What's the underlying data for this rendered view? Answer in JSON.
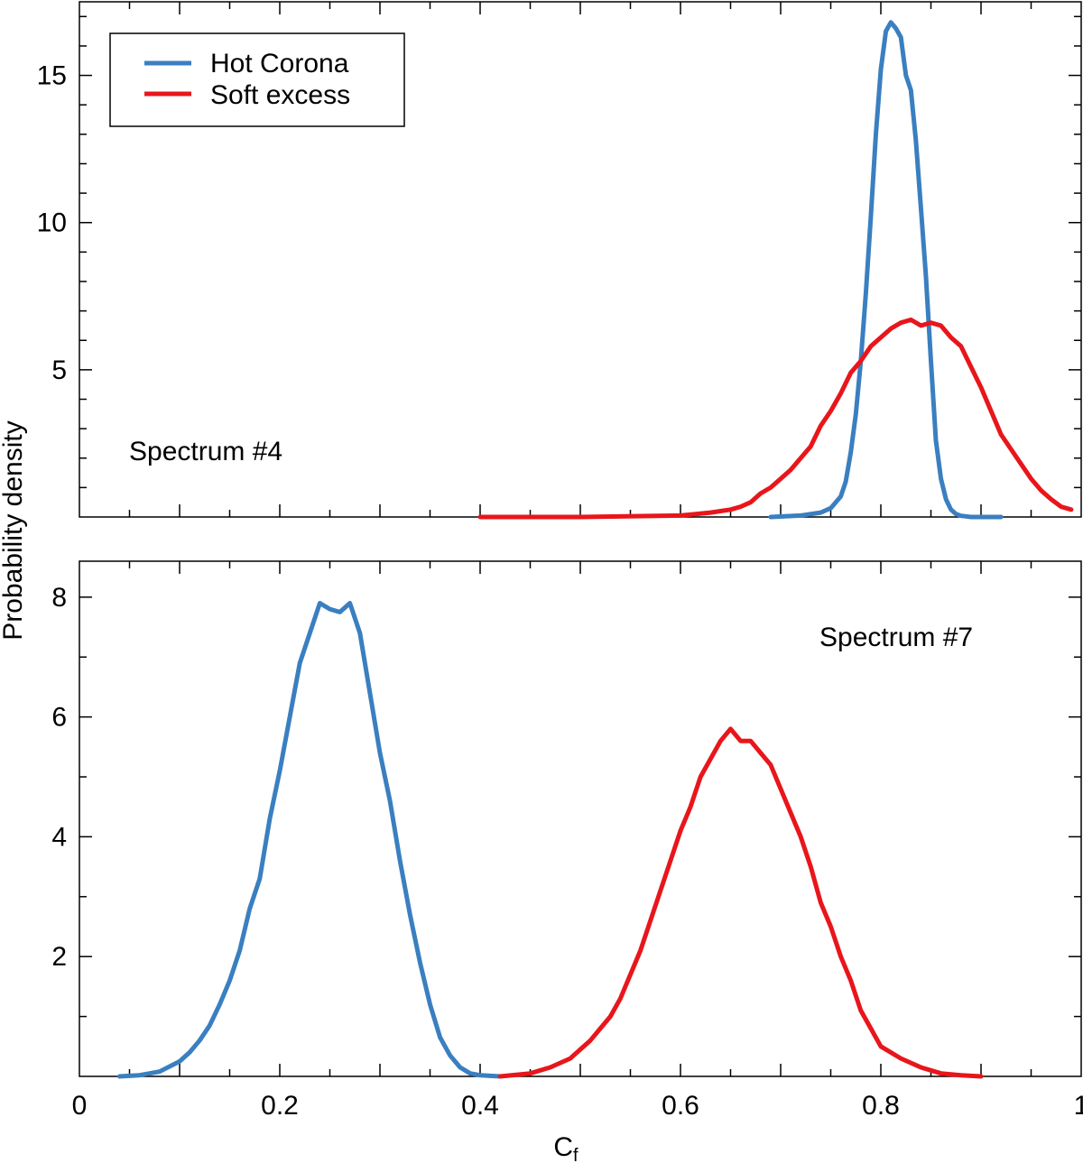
{
  "figure": {
    "ylabel": "Probability density",
    "xlabel_main": "C",
    "xlabel_sub": "f"
  },
  "legend": {
    "placement": "top-left",
    "items": [
      {
        "label": "Hot Corona",
        "color": "#3a7fc0"
      },
      {
        "label": "Soft excess",
        "color": "#e8161b"
      }
    ]
  },
  "chart_data": [
    {
      "type": "line",
      "annotation": "Spectrum #4",
      "xlim": [
        0,
        1
      ],
      "ylim": [
        0,
        17.5
      ],
      "yticks": [
        5,
        10,
        15
      ],
      "ytick_labels": [
        "5",
        "10",
        "15"
      ],
      "grid": false,
      "series": [
        {
          "name": "Hot Corona",
          "color": "#3a7fc0",
          "x": [
            0.69,
            0.72,
            0.74,
            0.75,
            0.76,
            0.765,
            0.77,
            0.775,
            0.78,
            0.785,
            0.79,
            0.795,
            0.8,
            0.805,
            0.81,
            0.815,
            0.82,
            0.825,
            0.83,
            0.835,
            0.84,
            0.845,
            0.85,
            0.855,
            0.86,
            0.865,
            0.87,
            0.875,
            0.88,
            0.885,
            0.89,
            0.9,
            0.92
          ],
          "y": [
            0,
            0.05,
            0.15,
            0.3,
            0.7,
            1.2,
            2.2,
            3.5,
            5.3,
            7.6,
            10.2,
            13,
            15.2,
            16.5,
            16.8,
            16.6,
            16.3,
            15,
            14.5,
            12.8,
            10.5,
            8.2,
            5.3,
            2.6,
            1.3,
            0.6,
            0.25,
            0.1,
            0.04,
            0.02,
            0,
            0,
            0
          ]
        },
        {
          "name": "Soft excess",
          "color": "#e8161b",
          "x": [
            0.4,
            0.5,
            0.6,
            0.63,
            0.65,
            0.66,
            0.67,
            0.68,
            0.69,
            0.7,
            0.71,
            0.72,
            0.73,
            0.74,
            0.75,
            0.76,
            0.77,
            0.78,
            0.79,
            0.8,
            0.81,
            0.82,
            0.83,
            0.84,
            0.85,
            0.86,
            0.87,
            0.88,
            0.89,
            0.9,
            0.91,
            0.92,
            0.93,
            0.94,
            0.95,
            0.96,
            0.97,
            0.98,
            0.99
          ],
          "y": [
            0,
            0,
            0.05,
            0.15,
            0.25,
            0.35,
            0.5,
            0.8,
            1,
            1.3,
            1.6,
            2,
            2.4,
            3.1,
            3.6,
            4.2,
            4.9,
            5.3,
            5.8,
            6.1,
            6.4,
            6.6,
            6.7,
            6.5,
            6.6,
            6.5,
            6.1,
            5.8,
            5.1,
            4.4,
            3.6,
            2.8,
            2.3,
            1.8,
            1.3,
            0.9,
            0.6,
            0.35,
            0.25
          ]
        }
      ]
    },
    {
      "type": "line",
      "annotation": "Spectrum #7",
      "xlim": [
        0,
        1
      ],
      "ylim": [
        0,
        8.6
      ],
      "xticks": [
        0,
        0.2,
        0.4,
        0.6,
        0.8,
        1
      ],
      "xtick_labels": [
        "0",
        "0.2",
        "0.4",
        "0.6",
        "0.8",
        "1"
      ],
      "yticks": [
        2,
        4,
        6,
        8
      ],
      "ytick_labels": [
        "2",
        "4",
        "6",
        "8"
      ],
      "grid": false,
      "series": [
        {
          "name": "Hot Corona",
          "color": "#3a7fc0",
          "x": [
            0.04,
            0.06,
            0.08,
            0.1,
            0.11,
            0.12,
            0.13,
            0.14,
            0.15,
            0.16,
            0.17,
            0.18,
            0.19,
            0.2,
            0.21,
            0.22,
            0.23,
            0.24,
            0.25,
            0.26,
            0.27,
            0.28,
            0.29,
            0.3,
            0.31,
            0.32,
            0.33,
            0.34,
            0.35,
            0.36,
            0.37,
            0.38,
            0.39,
            0.4,
            0.42
          ],
          "y": [
            0,
            0.02,
            0.08,
            0.25,
            0.4,
            0.6,
            0.85,
            1.2,
            1.6,
            2.1,
            2.8,
            3.3,
            4.3,
            5.1,
            6,
            6.9,
            7.4,
            7.9,
            7.8,
            7.75,
            7.9,
            7.4,
            6.4,
            5.4,
            4.6,
            3.6,
            2.7,
            1.9,
            1.2,
            0.65,
            0.35,
            0.15,
            0.05,
            0.02,
            0
          ]
        },
        {
          "name": "Soft excess",
          "color": "#e8161b",
          "x": [
            0.42,
            0.45,
            0.47,
            0.49,
            0.5,
            0.51,
            0.52,
            0.53,
            0.54,
            0.55,
            0.56,
            0.57,
            0.58,
            0.59,
            0.6,
            0.61,
            0.62,
            0.63,
            0.64,
            0.65,
            0.66,
            0.67,
            0.68,
            0.69,
            0.7,
            0.71,
            0.72,
            0.73,
            0.74,
            0.75,
            0.76,
            0.77,
            0.78,
            0.79,
            0.8,
            0.82,
            0.84,
            0.86,
            0.88,
            0.9
          ],
          "y": [
            0,
            0.05,
            0.15,
            0.3,
            0.45,
            0.6,
            0.8,
            1,
            1.3,
            1.7,
            2.1,
            2.6,
            3.1,
            3.6,
            4.1,
            4.5,
            5,
            5.3,
            5.6,
            5.8,
            5.6,
            5.6,
            5.4,
            5.2,
            4.8,
            4.4,
            4,
            3.5,
            2.9,
            2.5,
            2,
            1.6,
            1.1,
            0.8,
            0.5,
            0.3,
            0.15,
            0.05,
            0.02,
            0
          ]
        }
      ]
    }
  ]
}
